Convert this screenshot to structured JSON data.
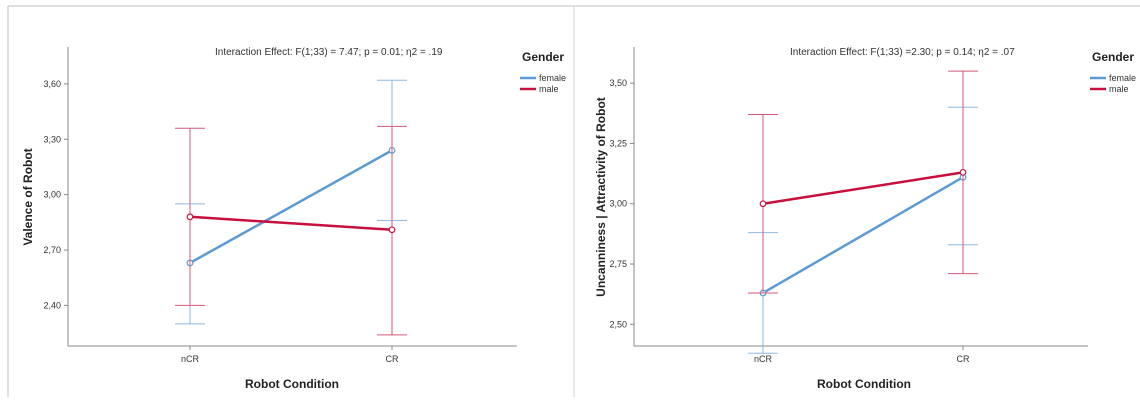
{
  "colors": {
    "female": "#5b9bd5",
    "male": "#c8103e",
    "female_err": "#8db8e2",
    "male_err": "#d45a7a"
  },
  "chart_data": [
    {
      "type": "line",
      "annotation": "Interaction Effect: F(1;33) = 7.47; p = 0.01; η2 = .19",
      "xlabel": "Robot Condition",
      "ylabel": "Valence of Robot",
      "categories": [
        "nCR",
        "CR"
      ],
      "y_ticks": [
        "2,40",
        "2,70",
        "3,00",
        "3,30",
        "3,60"
      ],
      "ylim": [
        2.18,
        3.8
      ],
      "legend": {
        "title": "Gender",
        "position": "right"
      },
      "series": [
        {
          "name": "female",
          "color": "#5b9bd5",
          "values": [
            2.63,
            3.24
          ],
          "err_low": [
            2.3,
            2.86
          ],
          "err_high": [
            2.95,
            3.62
          ]
        },
        {
          "name": "male",
          "color": "#c8103e",
          "values": [
            2.88,
            2.81
          ],
          "err_low": [
            2.4,
            2.24
          ],
          "err_high": [
            3.36,
            3.37
          ]
        }
      ]
    },
    {
      "type": "line",
      "annotation": "Interaction Effect: F(1;33) =2.30; p = 0.14; η2 = .07",
      "xlabel": "Robot Condition",
      "ylabel": "Uncanniness | Attractivity of Robot",
      "categories": [
        "nCR",
        "CR"
      ],
      "y_ticks": [
        "2,50",
        "2,75",
        "3,00",
        "3,25",
        "3,50"
      ],
      "ylim": [
        2.41,
        3.65
      ],
      "legend": {
        "title": "Gender",
        "position": "right"
      },
      "series": [
        {
          "name": "female",
          "color": "#5b9bd5",
          "values": [
            2.63,
            3.11
          ],
          "err_low": [
            2.38,
            2.83
          ],
          "err_high": [
            2.88,
            3.4
          ]
        },
        {
          "name": "male",
          "color": "#c8103e",
          "values": [
            3.0,
            3.13
          ],
          "err_low": [
            2.63,
            2.71
          ],
          "err_high": [
            3.37,
            3.55
          ]
        }
      ]
    }
  ]
}
